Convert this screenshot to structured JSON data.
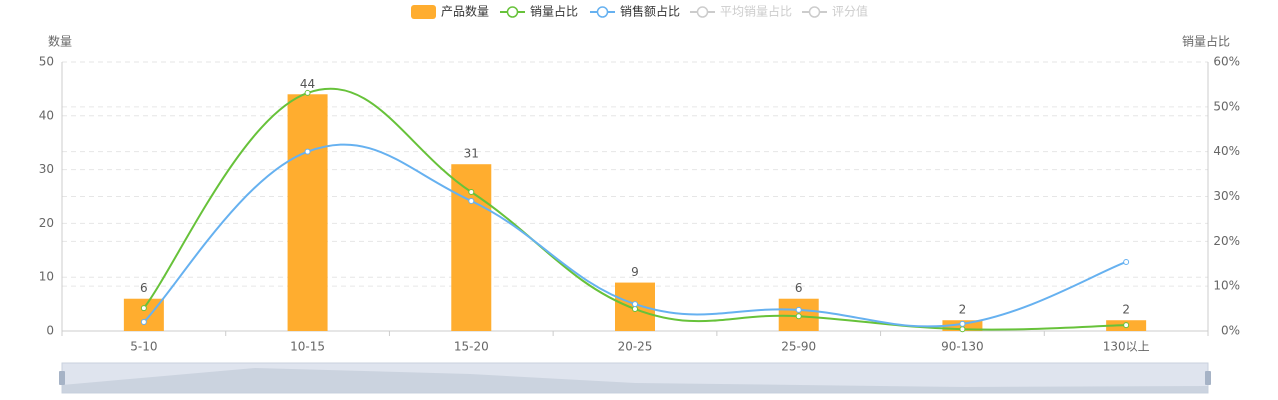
{
  "chart_data": {
    "type": "bar",
    "categories": [
      "5-10",
      "10-15",
      "15-20",
      "20-25",
      "25-90",
      "90-130",
      "130以上"
    ],
    "y_label": "数量",
    "y2_label": "销量占比",
    "ylim": [
      0,
      50
    ],
    "yticks": [
      0,
      10,
      20,
      30,
      40,
      50
    ],
    "y2lim": [
      0,
      60
    ],
    "y2ticks": [
      {
        "value": 0,
        "label": "0%"
      },
      {
        "value": 10,
        "label": "10%"
      },
      {
        "value": 20,
        "label": "20%"
      },
      {
        "value": 30,
        "label": "30%"
      },
      {
        "value": 40,
        "label": "40%"
      },
      {
        "value": 50,
        "label": "50%"
      },
      {
        "value": 60,
        "label": "60%"
      }
    ],
    "grid": true,
    "series": [
      {
        "name": "产品数量",
        "type": "bar",
        "color": "#ffad2f",
        "values": [
          6,
          44,
          31,
          9,
          6,
          2,
          2
        ],
        "visible": true
      },
      {
        "name": "销量占比",
        "type": "line",
        "axis": "y2",
        "color": "#67c23a",
        "values": [
          5.1,
          53.1,
          31,
          4.9,
          3.3,
          0.4,
          1.3
        ],
        "visible": true
      },
      {
        "name": "销售额占比",
        "type": "line",
        "axis": "y2",
        "color": "#66b1f0",
        "values": [
          2,
          40,
          29,
          6,
          4.7,
          1.6,
          15.4
        ],
        "visible": true
      },
      {
        "name": "平均销量占比",
        "type": "line",
        "axis": "y2",
        "color": "#cccccc",
        "values": [
          null,
          null,
          null,
          null,
          null,
          null,
          null
        ],
        "visible": false
      },
      {
        "name": "评分值",
        "type": "line",
        "axis": "y2",
        "color": "#cccccc",
        "values": [
          null,
          null,
          null,
          null,
          null,
          null,
          null
        ],
        "visible": false
      }
    ]
  }
}
